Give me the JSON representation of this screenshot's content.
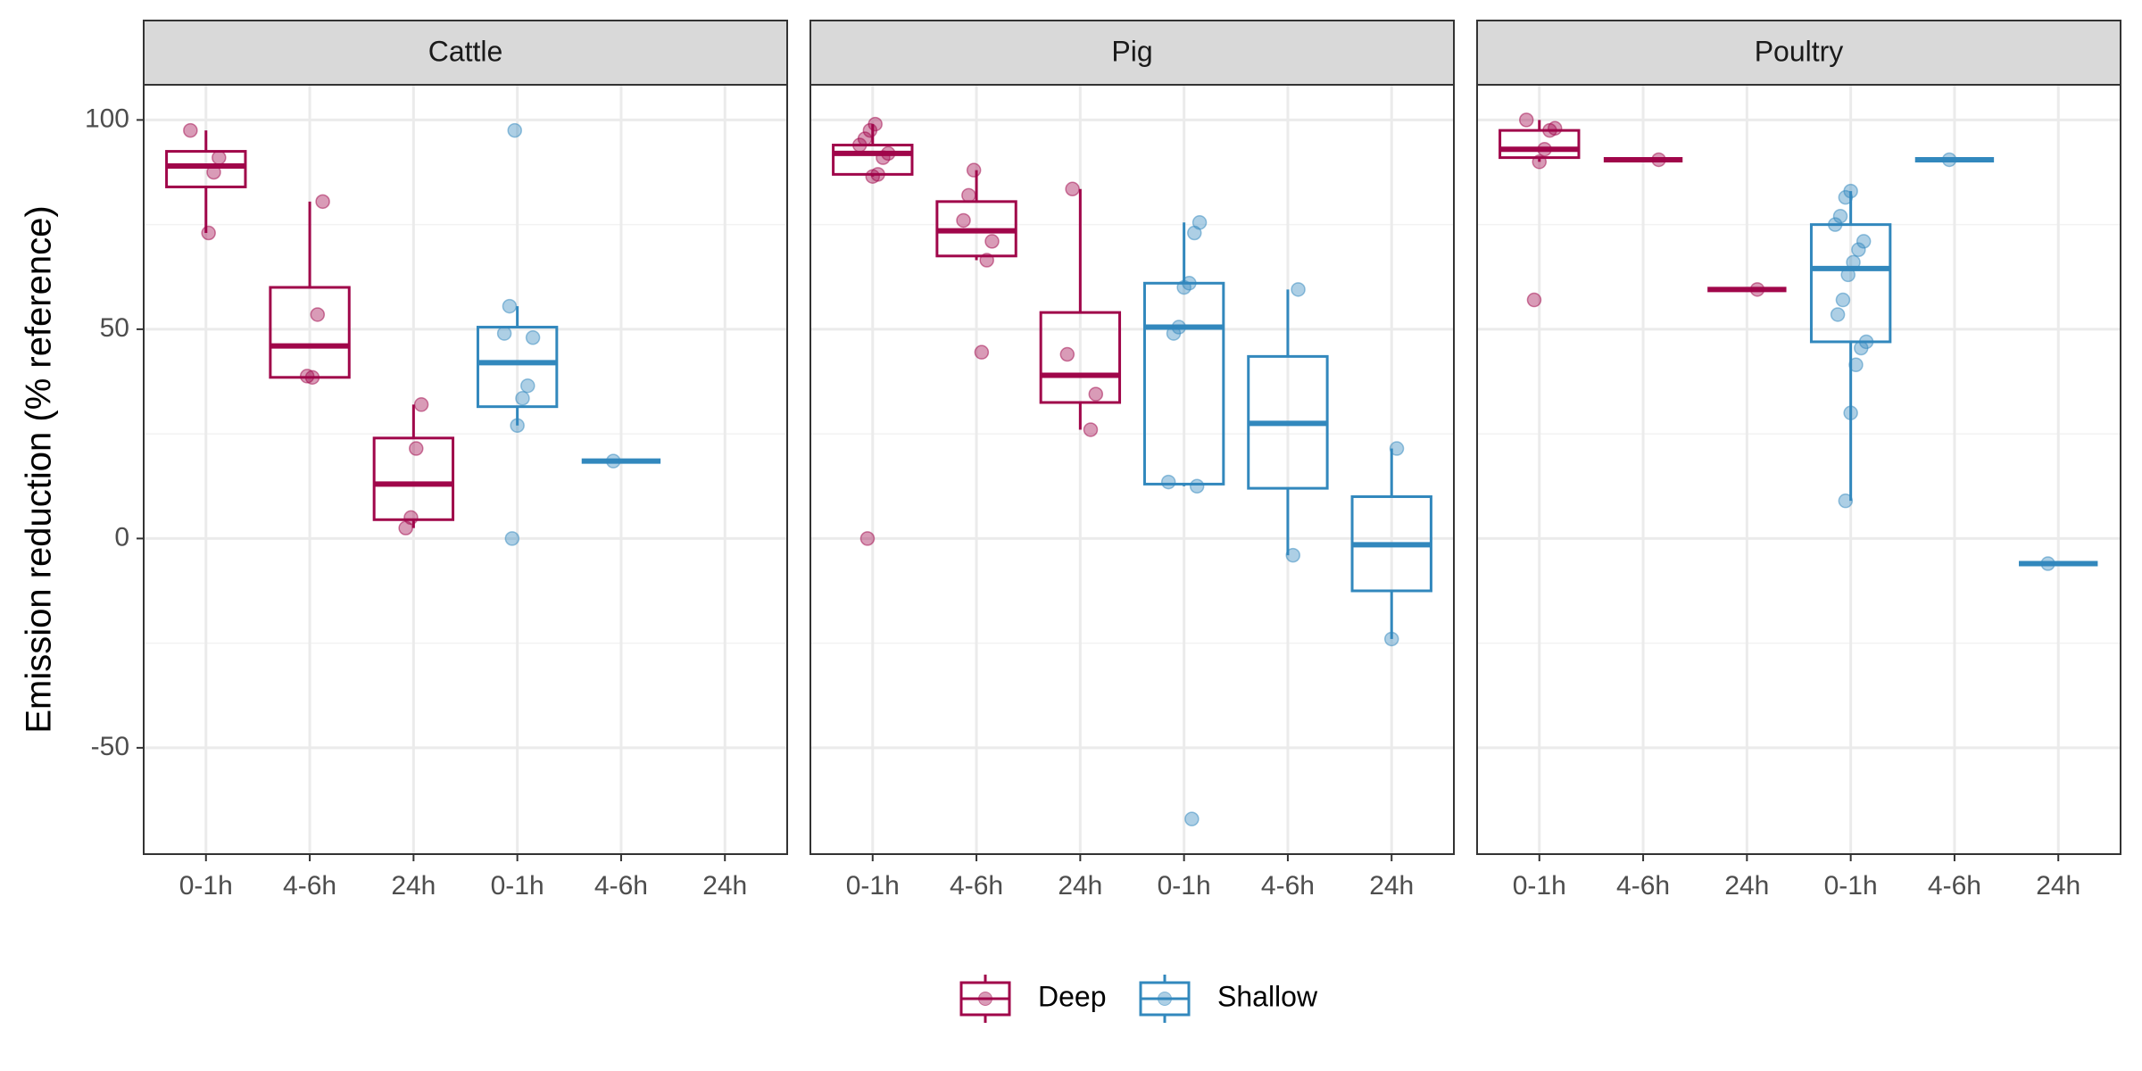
{
  "chart_data": {
    "type": "box",
    "ylabel": "Emission reduction (% reference)",
    "ylim": [
      -75.4,
      108.4
    ],
    "yticks": [
      -50,
      0,
      50,
      100
    ],
    "yminor": [
      -25,
      25,
      75
    ],
    "grid": true,
    "legend": "bottom",
    "categories": [
      "0-1h",
      "4-6h",
      "24h"
    ],
    "series": [
      {
        "name": "Deep",
        "color": "#a0064a"
      },
      {
        "name": "Shallow",
        "color": "#3288bd"
      }
    ],
    "facets": [
      {
        "title": "Cattle",
        "series": [
          {
            "boxes": [
              {
                "min": 73,
                "q1": 84,
                "median": 89,
                "q3": 92.5,
                "max": 97.5,
                "points": [
                  97.5,
                  91,
                  87.5,
                  73
                ]
              },
              {
                "min": 38.5,
                "q1": 38.5,
                "median": 46,
                "q3": 60,
                "max": 80.5,
                "points": [
                  80.5,
                  53.5,
                  38.5,
                  38.8
                ]
              },
              {
                "min": 2.5,
                "q1": 4.5,
                "median": 13,
                "q3": 24,
                "max": 32,
                "points": [
                  32,
                  21.5,
                  5,
                  2.5
                ]
              }
            ]
          },
          {
            "boxes": [
              {
                "min": 27,
                "q1": 31.5,
                "median": 42,
                "q3": 50.5,
                "max": 55.5,
                "points": [
                  97.5,
                  55.5,
                  49,
                  48,
                  36.5,
                  33.5,
                  27,
                  0
                ]
              },
              {
                "min": 18.5,
                "q1": 18.5,
                "median": 18.5,
                "q3": 18.5,
                "max": 18.5,
                "points": [
                  18.5
                ]
              },
              null
            ]
          }
        ]
      },
      {
        "title": "Pig",
        "series": [
          {
            "boxes": [
              {
                "min": 86.5,
                "q1": 87,
                "median": 92,
                "q3": 94,
                "max": 99,
                "points": [
                  99,
                  97.5,
                  95.5,
                  94,
                  92,
                  91,
                  87,
                  86.5,
                  0
                ]
              },
              {
                "min": 66.5,
                "q1": 67.5,
                "median": 73.5,
                "q3": 80.5,
                "max": 88,
                "points": [
                  88,
                  82,
                  76,
                  71,
                  66.5,
                  44.5
                ]
              },
              {
                "min": 26,
                "q1": 32.5,
                "median": 39,
                "q3": 54,
                "max": 83.5,
                "points": [
                  83.5,
                  44,
                  34.5,
                  26
                ]
              }
            ]
          },
          {
            "boxes": [
              {
                "min": 12.5,
                "q1": 13,
                "median": 50.5,
                "q3": 61,
                "max": 75.5,
                "points": [
                  75.5,
                  73,
                  61,
                  60,
                  50.5,
                  49,
                  13.5,
                  12.5,
                  -67
                ]
              },
              {
                "min": -4,
                "q1": 12,
                "median": 27.5,
                "q3": 43.5,
                "max": 59.5,
                "points": [
                  59.5,
                  -4
                ]
              },
              {
                "min": -24,
                "q1": -12.5,
                "median": -1.5,
                "q3": 10,
                "max": 21.5,
                "points": [
                  21.5,
                  -24
                ]
              }
            ]
          }
        ]
      },
      {
        "title": "Poultry",
        "series": [
          {
            "boxes": [
              {
                "min": 90,
                "q1": 91,
                "median": 93,
                "q3": 97.5,
                "max": 100,
                "points": [
                  100,
                  98,
                  97.5,
                  93,
                  90,
                  57
                ]
              },
              {
                "min": 90.5,
                "q1": 90.5,
                "median": 90.5,
                "q3": 90.5,
                "max": 90.5,
                "points": [
                  90.5
                ]
              },
              {
                "min": 59.5,
                "q1": 59.5,
                "median": 59.5,
                "q3": 59.5,
                "max": 59.5,
                "points": [
                  59.5
                ]
              }
            ]
          },
          {
            "boxes": [
              {
                "min": 9,
                "q1": 47,
                "median": 64.5,
                "q3": 75,
                "max": 83,
                "points": [
                  83,
                  81.5,
                  77,
                  75,
                  71,
                  69,
                  66,
                  63,
                  57,
                  53.5,
                  47,
                  45.5,
                  41.5,
                  30,
                  9
                ]
              },
              {
                "min": 90.5,
                "q1": 90.5,
                "median": 90.5,
                "q3": 90.5,
                "max": 90.5,
                "points": [
                  90.5
                ]
              },
              {
                "min": -6,
                "q1": -6,
                "median": -6,
                "q3": -6,
                "max": -6,
                "points": [
                  -6
                ]
              }
            ]
          }
        ]
      }
    ]
  }
}
